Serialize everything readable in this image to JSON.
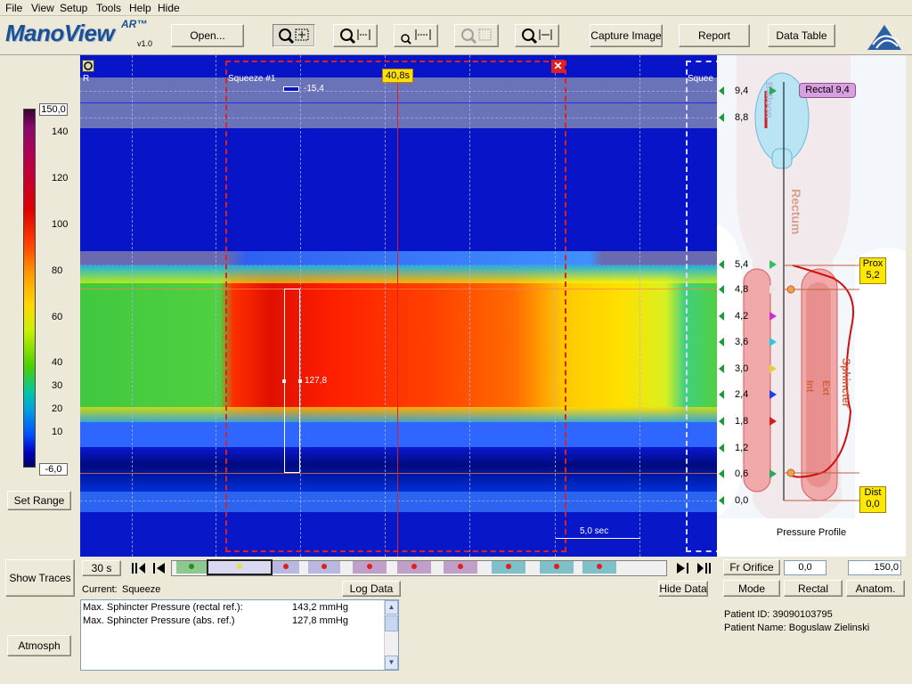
{
  "menu": [
    "File",
    "View",
    "Setup",
    "Tools",
    "Help",
    "Hide"
  ],
  "logo": {
    "name": "ManoView",
    "suffix": "AR™",
    "version": "v1.0"
  },
  "toolbar": {
    "open_label": "Open...",
    "capture_label": "Capture Image",
    "report_label": "Report",
    "datatable_label": "Data Table"
  },
  "colorbar": {
    "max_value": "150,0",
    "min_value": "-6,0",
    "ticks": [
      "140",
      "120",
      "100",
      "80",
      "60",
      "40",
      "30",
      "20",
      "10"
    ]
  },
  "left_buttons": {
    "set_range": "Set Range",
    "show_traces": "Show Traces",
    "atmosph": "Atmosph"
  },
  "plot": {
    "time_marker": "40,8s",
    "region_label_left": "R",
    "squeeze_label": "Squeeze #1",
    "squeeze_label_right": "Squee",
    "top_value": "-15,4",
    "max_value": "127,8",
    "scale_label": "5,0 sec"
  },
  "anatomy": {
    "depth_labels": [
      "9,4",
      "8,8",
      "5,4",
      "4,8",
      "4,2",
      "3,6",
      "3,0",
      "2,4",
      "1,8",
      "1,2",
      "0,6",
      "0,0"
    ],
    "marker_colors": [
      "#2aa860",
      "",
      "#30c060",
      "#e8e8e8",
      "#d030d0",
      "#30c8d8",
      "#e8d030",
      "#2040e0",
      "#d02020",
      "",
      "#2aa860",
      ""
    ],
    "rectum_label": "Rectum",
    "balloon_label": "Balloon",
    "sphincter_label": "Sphincter",
    "int_label": "Int",
    "ext_label": "Ext",
    "rectal_callout": "Rectal 9,4",
    "prox_callout_1": "Prox",
    "prox_callout_2": "5,2",
    "dist_callout_1": "Dist",
    "dist_callout_2": "0,0",
    "pressure_profile_label": "Pressure Profile"
  },
  "timeline": {
    "window_label": "30 s"
  },
  "bottom_left": {
    "current_prefix": "Current:",
    "current_value": "Squeeze",
    "log_data_label": "Log Data",
    "rows": [
      {
        "label": "Max. Sphincter Pressure (rectal ref.):",
        "value": "143,2 mmHg"
      },
      {
        "label": "Max. Sphincter Pressure (abs. ref.)",
        "value": "127,8 mmHg"
      }
    ]
  },
  "right_controls": {
    "hide_data_label": "Hide Data",
    "fr_orifice_label": "Fr Orifice",
    "range_min": "0,0",
    "range_max": "150,0",
    "mode_label": "Mode",
    "rectal_label": "Rectal",
    "anatom_label": "Anatom."
  },
  "patient": {
    "id_label": "Patient ID: 39090103795",
    "name_label": "Patient Name: Boguslaw Zielinski"
  }
}
